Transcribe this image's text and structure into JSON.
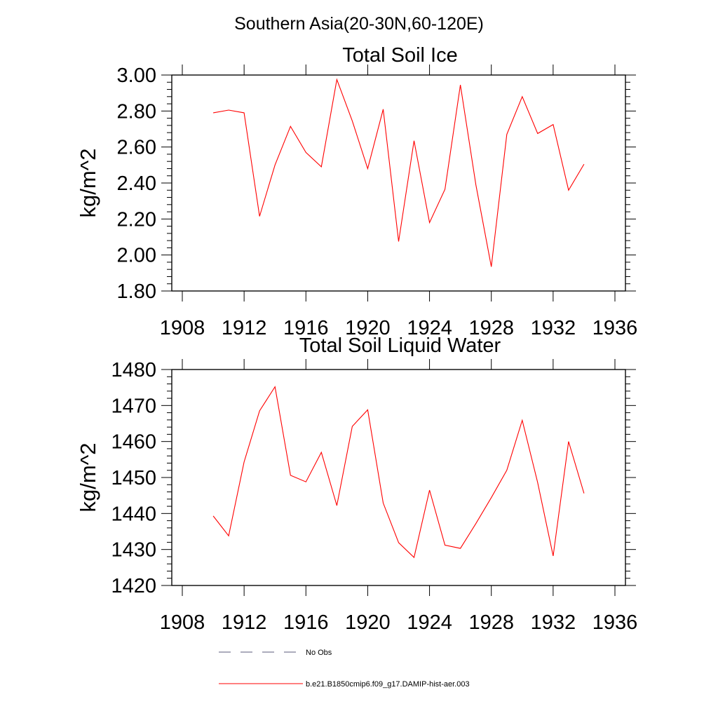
{
  "figure": {
    "supertitle": "Southern Asia(20-30N,60-120E)"
  },
  "chart_data": [
    {
      "type": "line",
      "title": "Total Soil Ice",
      "ylabel": "kg/m^2",
      "xlabel": "",
      "xlim": [
        1908,
        1936
      ],
      "ylim": [
        1.8,
        3.0
      ],
      "xticks": [
        1908,
        1912,
        1916,
        1920,
        1924,
        1928,
        1932,
        1936
      ],
      "xtick_labels": [
        "1908",
        "1912",
        "1916",
        "1920",
        "1924",
        "1928",
        "1932",
        "1936"
      ],
      "yticks": [
        1.8,
        2.0,
        2.2,
        2.4,
        2.6,
        2.8,
        3.0
      ],
      "ytick_labels": [
        "1.80",
        "2.00",
        "2.20",
        "2.40",
        "2.60",
        "2.80",
        "3.00"
      ],
      "grid": false,
      "color": "#ff0000",
      "x": [
        1910,
        1911,
        1912,
        1913,
        1914,
        1915,
        1916,
        1917,
        1918,
        1919,
        1920,
        1921,
        1922,
        1923,
        1924,
        1925,
        1926,
        1927,
        1928,
        1929,
        1930,
        1931,
        1932,
        1933,
        1934
      ],
      "values": [
        2.79,
        2.805,
        2.79,
        2.215,
        2.5,
        2.715,
        2.57,
        2.49,
        2.975,
        2.745,
        2.48,
        2.81,
        2.075,
        2.635,
        2.18,
        2.365,
        2.945,
        2.39,
        1.935,
        2.67,
        2.88,
        2.675,
        2.725,
        2.36,
        2.505
      ]
    },
    {
      "type": "line",
      "title": "Total Soil Liquid Water",
      "ylabel": "kg/m^2",
      "xlabel": "",
      "xlim": [
        1908,
        1936
      ],
      "ylim": [
        1420,
        1480
      ],
      "xticks": [
        1908,
        1912,
        1916,
        1920,
        1924,
        1928,
        1932,
        1936
      ],
      "xtick_labels": [
        "1908",
        "1912",
        "1916",
        "1920",
        "1924",
        "1928",
        "1932",
        "1936"
      ],
      "yticks": [
        1420,
        1430,
        1440,
        1450,
        1460,
        1470,
        1480
      ],
      "ytick_labels": [
        "1420",
        "1430",
        "1440",
        "1450",
        "1460",
        "1470",
        "1480"
      ],
      "grid": false,
      "color": "#ff0000",
      "x": [
        1910,
        1911,
        1912,
        1913,
        1914,
        1915,
        1916,
        1917,
        1918,
        1919,
        1920,
        1921,
        1922,
        1923,
        1924,
        1925,
        1926,
        1927,
        1928,
        1929,
        1930,
        1931,
        1932,
        1933,
        1934
      ],
      "values": [
        1439.3,
        1433.8,
        1454.3,
        1468.5,
        1475.2,
        1450.6,
        1448.8,
        1457.0,
        1442.2,
        1464.2,
        1468.8,
        1442.9,
        1431.9,
        1427.8,
        1446.5,
        1431.2,
        1430.3,
        1437.2,
        1444.4,
        1452.0,
        1465.9,
        1448.6,
        1428.2,
        1460.0,
        1445.6
      ]
    }
  ],
  "legend": {
    "placement": "bottom",
    "items": [
      {
        "label": "No Obs",
        "style": "dashed",
        "color": "#5a5a7a"
      },
      {
        "label": "b.e21.B1850cmip6.f09_g17.DAMIP-hist-aer.003",
        "style": "solid",
        "color": "#ff0000"
      }
    ]
  }
}
